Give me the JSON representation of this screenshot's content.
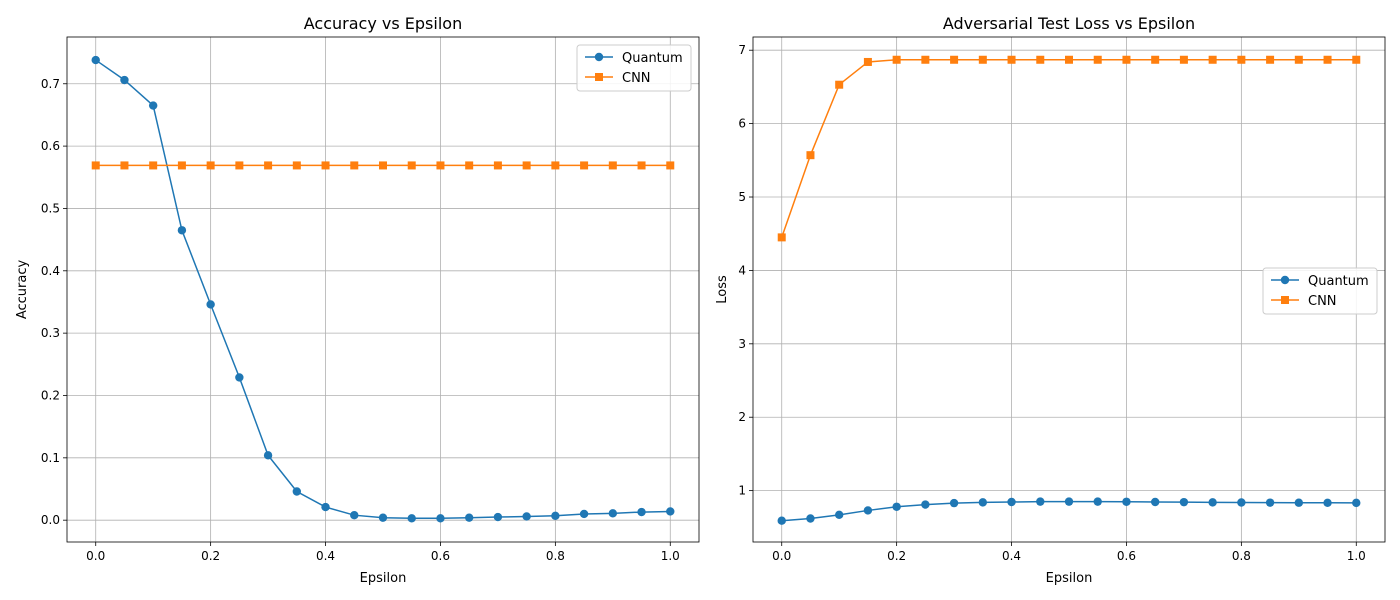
{
  "chart_data": [
    {
      "type": "line",
      "title": "Accuracy vs Epsilon",
      "xlabel": "Epsilon",
      "ylabel": "Accuracy",
      "xlim": [
        -0.05,
        1.05
      ],
      "ylim": [
        -0.035,
        0.775
      ],
      "grid": true,
      "legend_position": "top-right",
      "x_ticks": [
        "0.0",
        "0.2",
        "0.4",
        "0.6",
        "0.8",
        "1.0"
      ],
      "y_ticks": [
        "0.0",
        "0.1",
        "0.2",
        "0.3",
        "0.4",
        "0.5",
        "0.6",
        "0.7"
      ],
      "x": [
        0.0,
        0.05,
        0.1,
        0.15,
        0.2,
        0.25,
        0.3,
        0.35,
        0.4,
        0.45,
        0.5,
        0.55,
        0.6,
        0.65,
        0.7,
        0.75,
        0.8,
        0.85,
        0.9,
        0.95,
        1.0
      ],
      "series": [
        {
          "name": "Quantum",
          "color": "#1f77b4",
          "marker": "circle",
          "values": [
            0.738,
            0.706,
            0.665,
            0.465,
            0.346,
            0.229,
            0.104,
            0.046,
            0.021,
            0.008,
            0.004,
            0.003,
            0.003,
            0.004,
            0.005,
            0.006,
            0.007,
            0.01,
            0.011,
            0.013,
            0.014
          ]
        },
        {
          "name": "CNN",
          "color": "#ff7f0e",
          "marker": "square",
          "values": [
            0.569,
            0.569,
            0.569,
            0.569,
            0.569,
            0.569,
            0.569,
            0.569,
            0.569,
            0.569,
            0.569,
            0.569,
            0.569,
            0.569,
            0.569,
            0.569,
            0.569,
            0.569,
            0.569,
            0.569,
            0.569
          ]
        }
      ]
    },
    {
      "type": "line",
      "title": "Adversarial Test Loss vs Epsilon",
      "xlabel": "Epsilon",
      "ylabel": "Loss",
      "xlim": [
        -0.05,
        1.05
      ],
      "ylim": [
        0.3,
        7.18
      ],
      "grid": true,
      "legend_position": "center-right",
      "x_ticks": [
        "0.0",
        "0.2",
        "0.4",
        "0.6",
        "0.8",
        "1.0"
      ],
      "y_ticks": [
        "1",
        "2",
        "3",
        "4",
        "5",
        "6",
        "7"
      ],
      "x": [
        0.0,
        0.05,
        0.1,
        0.15,
        0.2,
        0.25,
        0.3,
        0.35,
        0.4,
        0.45,
        0.5,
        0.55,
        0.6,
        0.65,
        0.7,
        0.75,
        0.8,
        0.85,
        0.9,
        0.95,
        1.0
      ],
      "series": [
        {
          "name": "Quantum",
          "color": "#1f77b4",
          "marker": "circle",
          "values": [
            0.59,
            0.62,
            0.67,
            0.73,
            0.78,
            0.81,
            0.83,
            0.84,
            0.845,
            0.85,
            0.85,
            0.85,
            0.848,
            0.845,
            0.843,
            0.84,
            0.838,
            0.836,
            0.835,
            0.834,
            0.833
          ]
        },
        {
          "name": "CNN",
          "color": "#ff7f0e",
          "marker": "square",
          "values": [
            4.45,
            5.57,
            6.53,
            6.84,
            6.87,
            6.87,
            6.87,
            6.87,
            6.87,
            6.87,
            6.87,
            6.87,
            6.87,
            6.87,
            6.87,
            6.87,
            6.87,
            6.87,
            6.87,
            6.87,
            6.87
          ]
        }
      ]
    }
  ]
}
